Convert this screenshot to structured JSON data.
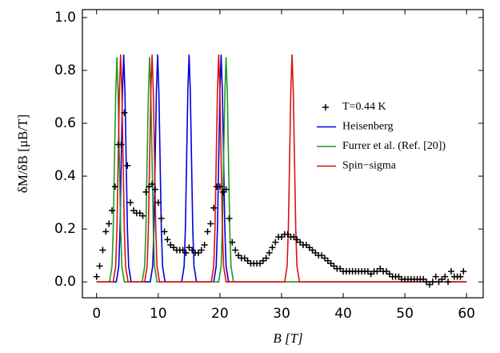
{
  "chart_data": {
    "type": "line",
    "xlabel": "B [T]",
    "ylabel": "δM/δB [μB/T]",
    "xlim": [
      -2.3,
      62.7
    ],
    "ylim": [
      -0.06,
      1.03
    ],
    "xticks": [
      0,
      10,
      20,
      30,
      40,
      50,
      60
    ],
    "yticks": [
      {
        "value": 0,
        "label": "0.0"
      },
      {
        "value": 0.2,
        "label": "0.2"
      },
      {
        "value": 0.4,
        "label": "0.4"
      },
      {
        "value": 0.6,
        "label": "0.6"
      },
      {
        "value": 0.8,
        "label": "0.8"
      },
      {
        "value": 1,
        "label": "1.0"
      }
    ],
    "legend": "center right",
    "series": [
      {
        "name": "T=0.44 K",
        "color": "#000000",
        "style": "markers",
        "x": [
          0,
          0.5,
          1,
          1.5,
          2,
          2.5,
          3,
          3.5,
          4,
          4.5,
          5,
          5.5,
          6,
          6.5,
          7,
          7.5,
          8,
          8.5,
          9,
          9.5,
          10,
          10.5,
          11,
          11.5,
          12,
          12.5,
          13,
          13.5,
          14,
          14.5,
          15,
          15.5,
          16,
          16.5,
          17,
          17.5,
          18,
          18.5,
          19,
          19.5,
          20,
          20.5,
          21,
          21.5,
          22,
          22.5,
          23,
          23.5,
          24,
          24.5,
          25,
          25.5,
          26,
          26.5,
          27,
          27.5,
          28,
          28.5,
          29,
          29.5,
          30,
          30.5,
          31,
          31.5,
          32,
          32.5,
          33,
          33.5,
          34,
          34.5,
          35,
          35.5,
          36,
          36.5,
          37,
          37.5,
          38,
          38.5,
          39,
          39.5,
          40,
          40.5,
          41,
          41.5,
          42,
          42.5,
          43,
          43.5,
          44,
          44.5,
          45,
          45.5,
          46,
          46.5,
          47,
          47.5,
          48,
          48.5,
          49,
          49.5,
          50,
          50.5,
          51,
          51.5,
          52,
          52.5,
          53,
          53.5,
          54,
          54.5,
          55,
          55.5,
          56,
          56.5,
          57,
          57.5,
          58,
          58.5,
          59,
          59.5
        ],
        "values": [
          0.02,
          0.06,
          0.12,
          0.19,
          0.22,
          0.27,
          0.36,
          0.52,
          0.52,
          0.64,
          0.44,
          0.3,
          0.27,
          0.26,
          0.26,
          0.25,
          0.34,
          0.36,
          0.37,
          0.35,
          0.3,
          0.24,
          0.19,
          0.16,
          0.14,
          0.13,
          0.12,
          0.12,
          0.12,
          0.11,
          0.13,
          0.12,
          0.11,
          0.11,
          0.12,
          0.14,
          0.19,
          0.22,
          0.28,
          0.36,
          0.36,
          0.34,
          0.35,
          0.24,
          0.15,
          0.12,
          0.1,
          0.09,
          0.09,
          0.08,
          0.07,
          0.07,
          0.07,
          0.07,
          0.08,
          0.09,
          0.11,
          0.13,
          0.15,
          0.17,
          0.17,
          0.18,
          0.18,
          0.17,
          0.17,
          0.16,
          0.15,
          0.14,
          0.14,
          0.13,
          0.12,
          0.11,
          0.1,
          0.1,
          0.09,
          0.08,
          0.07,
          0.06,
          0.05,
          0.05,
          0.04,
          0.04,
          0.04,
          0.04,
          0.04,
          0.04,
          0.04,
          0.04,
          0.04,
          0.03,
          0.04,
          0.04,
          0.05,
          0.04,
          0.04,
          0.03,
          0.02,
          0.02,
          0.02,
          0.01,
          0.01,
          0.01,
          0.01,
          0.01,
          0.01,
          0.01,
          0.01,
          0,
          -0.01,
          0,
          0.02,
          0,
          0.01,
          0.02,
          0,
          0.04,
          0.02,
          0.02,
          0.02,
          0.04
        ]
      },
      {
        "name": "Heisenberg",
        "color": "#0000dd",
        "style": "line",
        "x": [
          0,
          3.2,
          3.6,
          3.8,
          4.0,
          4.2,
          4.4,
          4.6,
          4.8,
          5.0,
          5.2,
          5.6,
          8.7,
          9.1,
          9.3,
          9.5,
          9.7,
          9.9,
          10.1,
          10.3,
          10.5,
          10.7,
          11.1,
          13.8,
          14.2,
          14.4,
          14.6,
          14.8,
          15.0,
          15.2,
          15.4,
          15.6,
          15.8,
          16.2,
          19.0,
          19.4,
          19.6,
          19.8,
          20.0,
          20.2,
          20.4,
          20.6,
          20.8,
          21.0,
          21.4,
          60
        ],
        "values": [
          0,
          0,
          0.06,
          0.2,
          0.46,
          0.72,
          0.86,
          0.72,
          0.46,
          0.2,
          0.06,
          0,
          0,
          0.06,
          0.2,
          0.46,
          0.72,
          0.86,
          0.72,
          0.46,
          0.2,
          0.06,
          0,
          0,
          0.06,
          0.2,
          0.46,
          0.72,
          0.86,
          0.72,
          0.46,
          0.2,
          0.06,
          0,
          0,
          0.06,
          0.2,
          0.46,
          0.72,
          0.86,
          0.72,
          0.46,
          0.2,
          0.06,
          0,
          0
        ]
      },
      {
        "name": "Furrer et al. (Ref. [20])",
        "color": "#229922",
        "style": "line",
        "x": [
          0,
          2.1,
          2.5,
          2.7,
          2.9,
          3.1,
          3.3,
          3.5,
          3.7,
          3.9,
          4.1,
          4.5,
          7.4,
          7.8,
          8.0,
          8.2,
          8.4,
          8.6,
          8.8,
          9.0,
          9.2,
          9.4,
          9.8,
          19.8,
          20.2,
          20.4,
          20.6,
          20.8,
          21.0,
          21.2,
          21.4,
          21.6,
          21.8,
          22.2,
          60
        ],
        "values": [
          0,
          0,
          0.06,
          0.2,
          0.46,
          0.71,
          0.85,
          0.71,
          0.46,
          0.2,
          0.06,
          0,
          0,
          0.06,
          0.2,
          0.46,
          0.71,
          0.85,
          0.71,
          0.46,
          0.2,
          0.06,
          0,
          0,
          0.06,
          0.2,
          0.46,
          0.71,
          0.85,
          0.71,
          0.46,
          0.2,
          0.06,
          0,
          0
        ]
      },
      {
        "name": "Spin−sigma",
        "color": "#dd1111",
        "style": "line",
        "x": [
          0,
          2.7,
          3.1,
          3.3,
          3.5,
          3.7,
          3.9,
          4.1,
          4.3,
          4.5,
          4.7,
          5.1,
          7.8,
          8.2,
          8.4,
          8.6,
          8.8,
          9.0,
          9.2,
          9.4,
          9.6,
          9.8,
          10.2,
          18.6,
          19.0,
          19.2,
          19.4,
          19.6,
          19.8,
          20.0,
          20.2,
          20.4,
          20.6,
          21.0,
          30.5,
          30.9,
          31.1,
          31.3,
          31.5,
          31.7,
          31.9,
          32.1,
          32.3,
          32.5,
          32.9,
          60
        ],
        "values": [
          0,
          0,
          0.06,
          0.2,
          0.46,
          0.72,
          0.86,
          0.72,
          0.46,
          0.2,
          0.06,
          0,
          0,
          0.06,
          0.2,
          0.46,
          0.72,
          0.86,
          0.72,
          0.46,
          0.2,
          0.06,
          0,
          0,
          0.06,
          0.2,
          0.46,
          0.72,
          0.86,
          0.72,
          0.46,
          0.2,
          0.06,
          0,
          0,
          0.06,
          0.2,
          0.46,
          0.72,
          0.86,
          0.72,
          0.46,
          0.2,
          0.06,
          0,
          0
        ]
      }
    ]
  }
}
